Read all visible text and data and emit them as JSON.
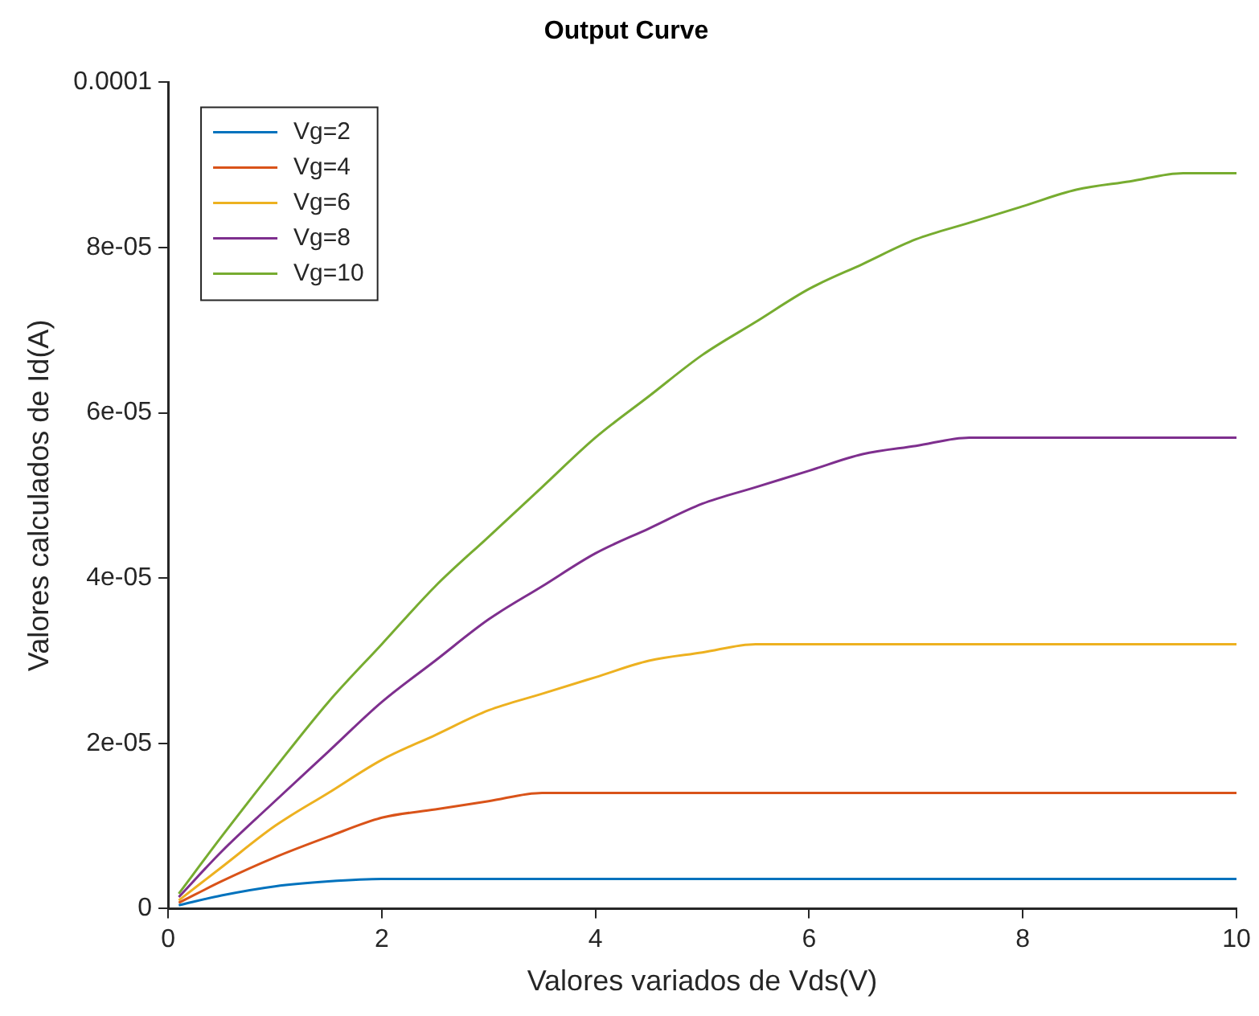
{
  "chart_data": {
    "type": "line",
    "title": "Output Curve",
    "xlabel": "Valores variados de Vds(V)",
    "ylabel": "Valores calculados de Id(A)",
    "xlim": [
      0,
      10
    ],
    "xticks": [
      0,
      2,
      4,
      6,
      8,
      10
    ],
    "ylim": [
      0,
      0.0001
    ],
    "yticks": [
      0,
      {
        "value": 2e-05,
        "label": "2e-05"
      },
      {
        "value": 4e-05,
        "label": "4e-05"
      },
      {
        "value": 6e-05,
        "label": "6e-05"
      },
      {
        "value": 8e-05,
        "label": "8e-05"
      },
      0.0001
    ],
    "grid": false,
    "legend": "top left",
    "marker": "none",
    "line_style": "solid",
    "x": [
      0.1,
      0.5,
      1,
      1.5,
      2,
      2.5,
      3,
      3.5,
      4,
      4.5,
      5,
      5.5,
      6,
      6.5,
      7,
      7.5,
      8,
      8.5,
      9,
      9.5,
      10
    ],
    "series": [
      {
        "name": "Vg=2",
        "color": "#0072bd",
        "values": [
          4e-07,
          1.6e-06,
          2.7e-06,
          3.3e-06,
          3.6e-06,
          3.6e-06,
          3.6e-06,
          3.6e-06,
          3.6e-06,
          3.6e-06,
          3.6e-06,
          3.6e-06,
          3.6e-06,
          3.6e-06,
          3.6e-06,
          3.6e-06,
          3.6e-06,
          3.6e-06,
          3.6e-06,
          3.6e-06,
          3.6e-06
        ]
      },
      {
        "name": "Vg=4",
        "color": "#d95319",
        "values": [
          7e-07,
          3.3e-06,
          6.2e-06,
          8.7e-06,
          1.1e-05,
          1.2e-05,
          1.3e-05,
          1.4e-05,
          1.4e-05,
          1.4e-05,
          1.4e-05,
          1.4e-05,
          1.4e-05,
          1.4e-05,
          1.4e-05,
          1.4e-05,
          1.4e-05,
          1.4e-05,
          1.4e-05,
          1.4e-05,
          1.4e-05
        ]
      },
      {
        "name": "Vg=6",
        "color": "#edb120",
        "values": [
          1e-06,
          5e-06,
          1e-05,
          1.4e-05,
          1.8e-05,
          2.1e-05,
          2.4e-05,
          2.6e-05,
          2.8e-05,
          3e-05,
          3.1e-05,
          3.2e-05,
          3.2e-05,
          3.2e-05,
          3.2e-05,
          3.2e-05,
          3.2e-05,
          3.2e-05,
          3.2e-05,
          3.2e-05,
          3.2e-05
        ]
      },
      {
        "name": "Vg=8",
        "color": "#7e2f8e",
        "values": [
          1.4e-06,
          6.9e-06,
          1.3e-05,
          1.9e-05,
          2.5e-05,
          3e-05,
          3.5e-05,
          3.9e-05,
          4.3e-05,
          4.6e-05,
          4.9e-05,
          5.1e-05,
          5.3e-05,
          5.5e-05,
          5.6e-05,
          5.7e-05,
          5.7e-05,
          5.7e-05,
          5.7e-05,
          5.7e-05,
          5.7e-05
        ]
      },
      {
        "name": "Vg=10",
        "color": "#77ac30",
        "values": [
          1.8e-06,
          8.7e-06,
          1.7e-05,
          2.5e-05,
          3.2e-05,
          3.9e-05,
          4.5e-05,
          5.1e-05,
          5.7e-05,
          6.2e-05,
          6.7e-05,
          7.1e-05,
          7.5e-05,
          7.8e-05,
          8.1e-05,
          8.3e-05,
          8.5e-05,
          8.7e-05,
          8.8e-05,
          8.9e-05,
          8.9e-05
        ]
      }
    ]
  }
}
